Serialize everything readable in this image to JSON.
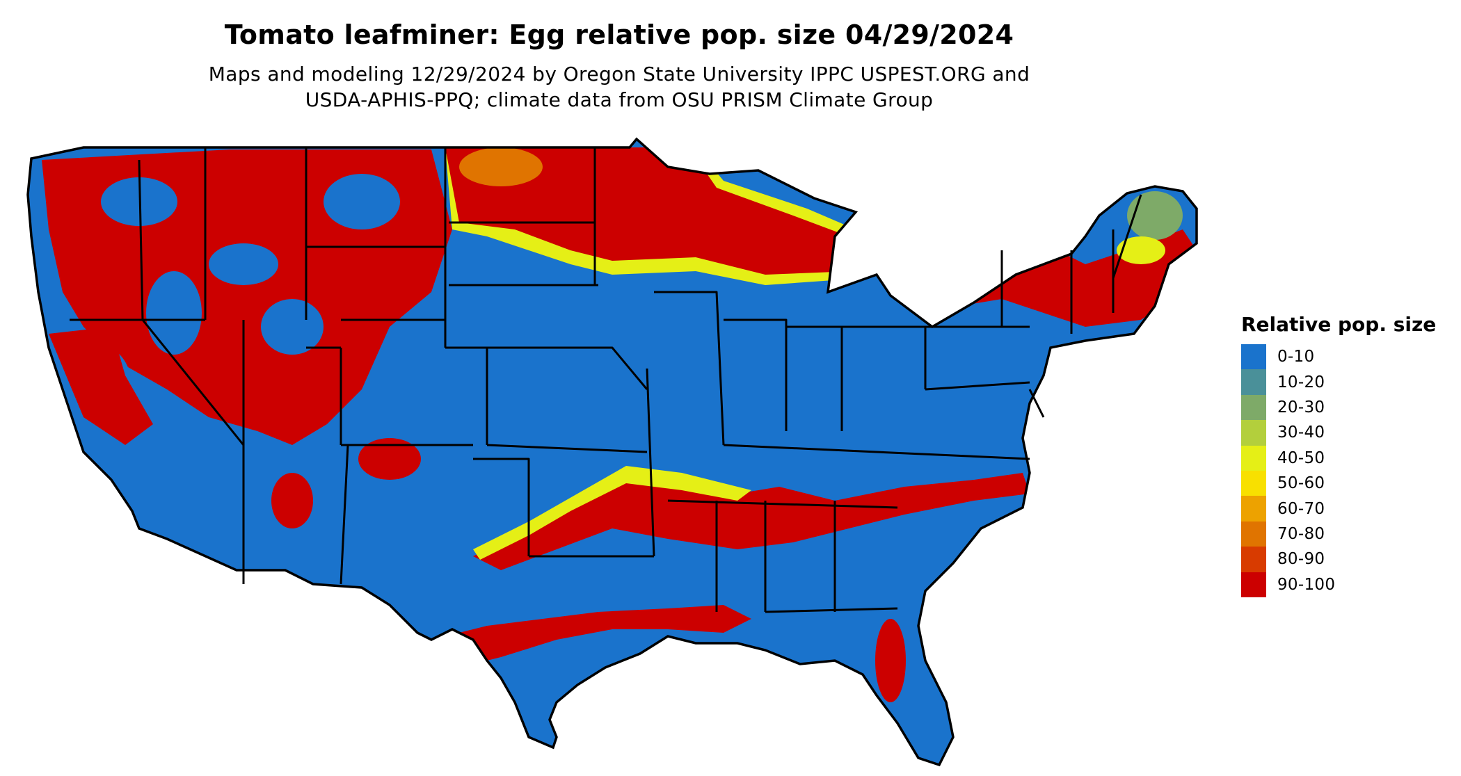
{
  "map": {
    "title": "Tomato leafminer: Egg relative pop. size 04/29/2024",
    "subtitle_lines": [
      "Maps and modeling 12/29/2024 by Oregon State University IPPC USPEST.ORG and",
      "USDA-APHIS-PPQ; climate data from OSU PRISM Climate Group"
    ],
    "background_color": "#1a73cc",
    "border_color": "#000000"
  },
  "legend": {
    "title": "Relative pop. size",
    "items": [
      {
        "label": "0-10",
        "color": "#1a73cc"
      },
      {
        "label": "10-20",
        "color": "#4a9099"
      },
      {
        "label": "20-30",
        "color": "#7eaa68"
      },
      {
        "label": "30-40",
        "color": "#b3cf3c"
      },
      {
        "label": "40-50",
        "color": "#e5ef16"
      },
      {
        "label": "50-60",
        "color": "#f8e000"
      },
      {
        "label": "60-70",
        "color": "#eda200"
      },
      {
        "label": "70-80",
        "color": "#e07400"
      },
      {
        "label": "80-90",
        "color": "#d83b00"
      },
      {
        "label": "90-100",
        "color": "#cc0000"
      }
    ]
  }
}
